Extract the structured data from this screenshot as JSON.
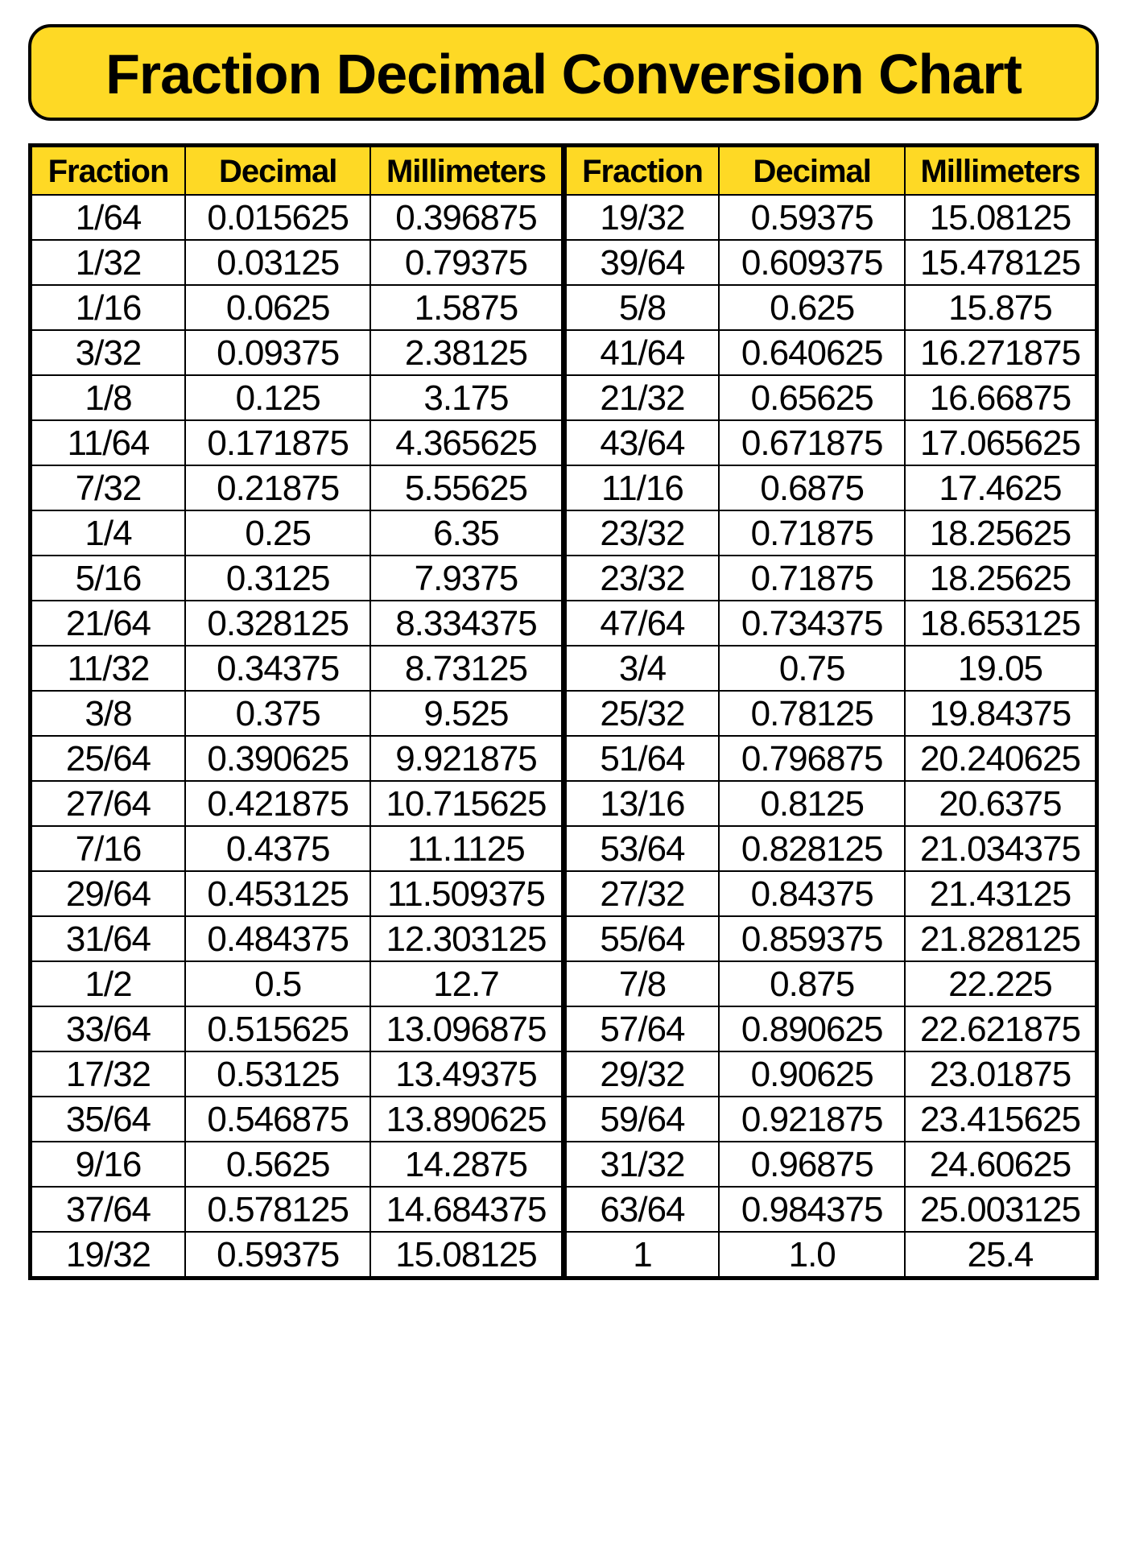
{
  "colors": {
    "yellow": "#fed925",
    "black": "#000000",
    "white": "#ffffff"
  },
  "title": "Fraction Decimal Conversion Chart",
  "headers": [
    "Fraction",
    "Decimal",
    "Millimeters"
  ],
  "left_rows": [
    [
      "1/64",
      "0.015625",
      "0.396875"
    ],
    [
      "1/32",
      "0.03125",
      "0.79375"
    ],
    [
      "1/16",
      "0.0625",
      "1.5875"
    ],
    [
      "3/32",
      "0.09375",
      "2.38125"
    ],
    [
      "1/8",
      "0.125",
      "3.175"
    ],
    [
      "11/64",
      "0.171875",
      "4.365625"
    ],
    [
      "7/32",
      "0.21875",
      "5.55625"
    ],
    [
      "1/4",
      "0.25",
      "6.35"
    ],
    [
      "5/16",
      "0.3125",
      "7.9375"
    ],
    [
      "21/64",
      "0.328125",
      "8.334375"
    ],
    [
      "11/32",
      "0.34375",
      "8.73125"
    ],
    [
      "3/8",
      "0.375",
      "9.525"
    ],
    [
      "25/64",
      "0.390625",
      "9.921875"
    ],
    [
      "27/64",
      "0.421875",
      "10.715625"
    ],
    [
      "7/16",
      "0.4375",
      "11.1125"
    ],
    [
      "29/64",
      "0.453125",
      "11.509375"
    ],
    [
      "31/64",
      "0.484375",
      "12.303125"
    ],
    [
      "1/2",
      "0.5",
      "12.7"
    ],
    [
      "33/64",
      "0.515625",
      "13.096875"
    ],
    [
      "17/32",
      "0.53125",
      "13.49375"
    ],
    [
      "35/64",
      "0.546875",
      "13.890625"
    ],
    [
      "9/16",
      "0.5625",
      "14.2875"
    ],
    [
      "37/64",
      "0.578125",
      "14.684375"
    ],
    [
      "19/32",
      "0.59375",
      "15.08125"
    ]
  ],
  "right_rows": [
    [
      "19/32",
      "0.59375",
      "15.08125"
    ],
    [
      "39/64",
      "0.609375",
      "15.478125"
    ],
    [
      "5/8",
      "0.625",
      "15.875"
    ],
    [
      "41/64",
      "0.640625",
      "16.271875"
    ],
    [
      "21/32",
      "0.65625",
      "16.66875"
    ],
    [
      "43/64",
      "0.671875",
      "17.065625"
    ],
    [
      "11/16",
      "0.6875",
      "17.4625"
    ],
    [
      "23/32",
      "0.71875",
      "18.25625"
    ],
    [
      "23/32",
      "0.71875",
      "18.25625"
    ],
    [
      "47/64",
      "0.734375",
      "18.653125"
    ],
    [
      "3/4",
      "0.75",
      "19.05"
    ],
    [
      "25/32",
      "0.78125",
      "19.84375"
    ],
    [
      "51/64",
      "0.796875",
      "20.240625"
    ],
    [
      "13/16",
      "0.8125",
      "20.6375"
    ],
    [
      "53/64",
      "0.828125",
      "21.034375"
    ],
    [
      "27/32",
      "0.84375",
      "21.43125"
    ],
    [
      "55/64",
      "0.859375",
      "21.828125"
    ],
    [
      "7/8",
      "0.875",
      "22.225"
    ],
    [
      "57/64",
      "0.890625",
      "22.621875"
    ],
    [
      "29/32",
      "0.90625",
      "23.01875"
    ],
    [
      "59/64",
      "0.921875",
      "23.415625"
    ],
    [
      "31/32",
      "0.96875",
      "24.60625"
    ],
    [
      "63/64",
      "0.984375",
      "25.003125"
    ],
    [
      "1",
      "1.0",
      "25.4"
    ]
  ]
}
